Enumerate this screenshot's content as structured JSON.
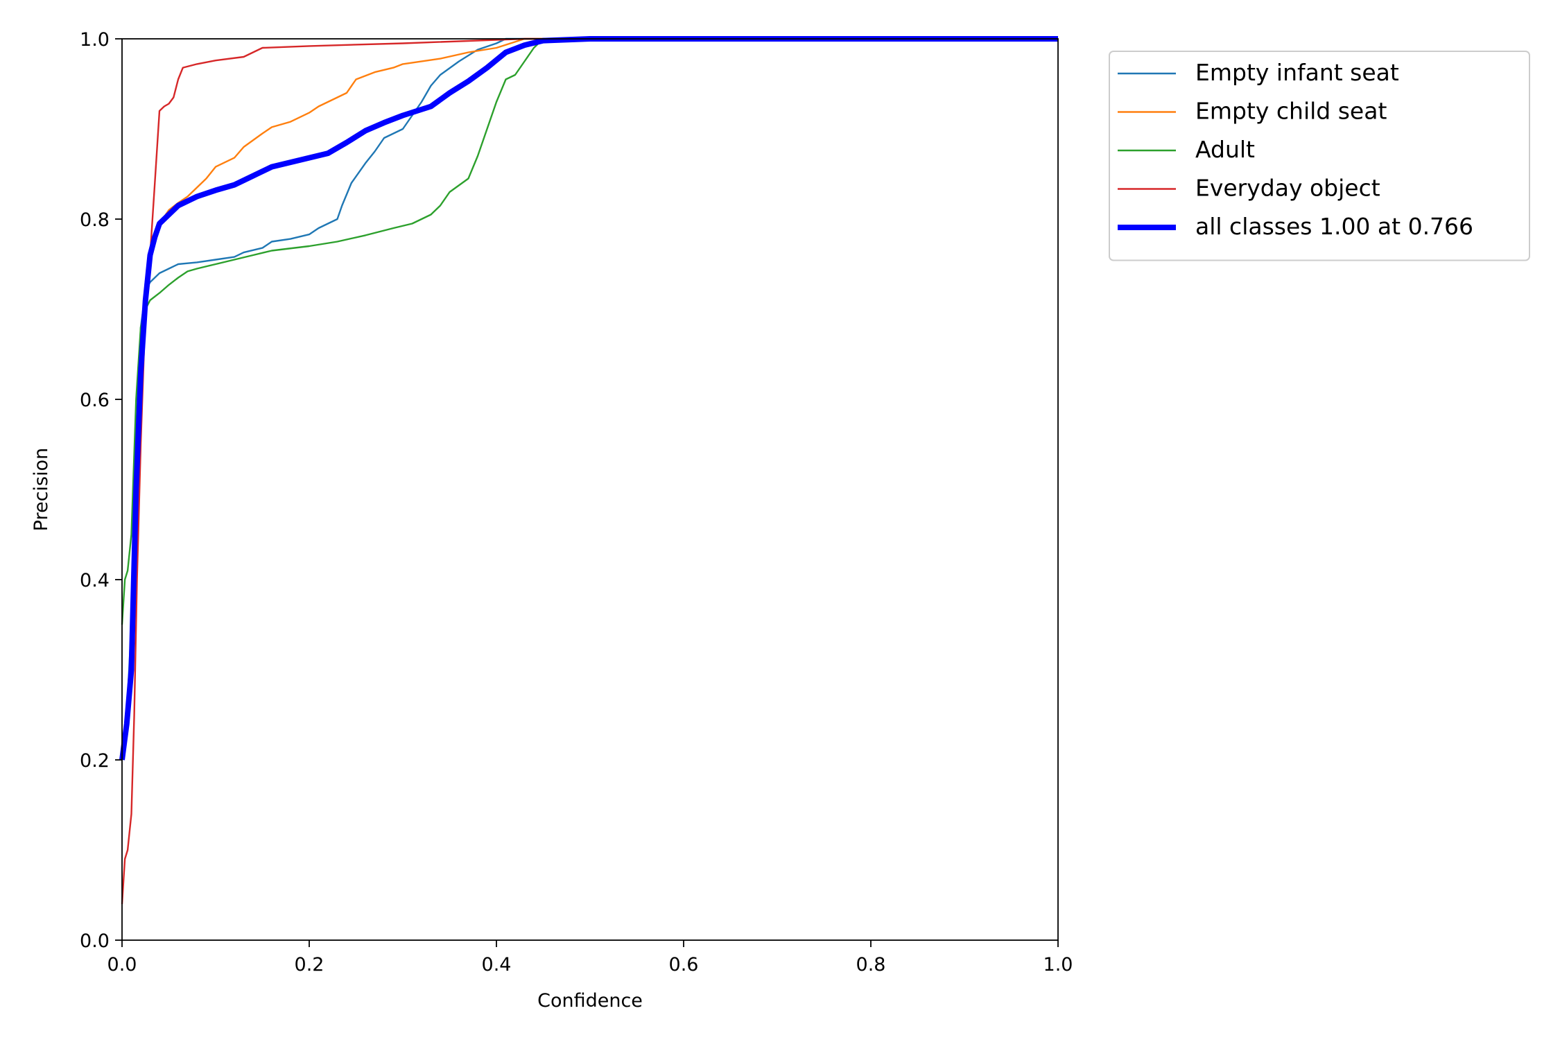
{
  "chart_data": {
    "type": "line",
    "title": "",
    "xlabel": "Confidence",
    "ylabel": "Precision",
    "xlim": [
      0,
      1
    ],
    "ylim": [
      0,
      1
    ],
    "x_ticks": [
      "0.0",
      "0.2",
      "0.4",
      "0.6",
      "0.8",
      "1.0"
    ],
    "y_ticks": [
      "0.0",
      "0.2",
      "0.4",
      "0.6",
      "0.8",
      "1.0"
    ],
    "grid": false,
    "legend_position": "outside-top-right",
    "series": [
      {
        "name": "Empty infant seat",
        "color": "#1f77b4",
        "points": [
          [
            0.0,
            0.2
          ],
          [
            0.005,
            0.25
          ],
          [
            0.01,
            0.35
          ],
          [
            0.015,
            0.55
          ],
          [
            0.02,
            0.68
          ],
          [
            0.025,
            0.72
          ],
          [
            0.03,
            0.73
          ],
          [
            0.04,
            0.74
          ],
          [
            0.05,
            0.745
          ],
          [
            0.06,
            0.75
          ],
          [
            0.08,
            0.752
          ],
          [
            0.1,
            0.755
          ],
          [
            0.12,
            0.758
          ],
          [
            0.13,
            0.763
          ],
          [
            0.15,
            0.768
          ],
          [
            0.16,
            0.775
          ],
          [
            0.18,
            0.778
          ],
          [
            0.2,
            0.783
          ],
          [
            0.21,
            0.79
          ],
          [
            0.23,
            0.8
          ],
          [
            0.235,
            0.815
          ],
          [
            0.245,
            0.84
          ],
          [
            0.26,
            0.862
          ],
          [
            0.27,
            0.875
          ],
          [
            0.28,
            0.89
          ],
          [
            0.3,
            0.9
          ],
          [
            0.31,
            0.915
          ],
          [
            0.32,
            0.93
          ],
          [
            0.33,
            0.948
          ],
          [
            0.34,
            0.96
          ],
          [
            0.36,
            0.975
          ],
          [
            0.38,
            0.988
          ],
          [
            0.4,
            0.995
          ],
          [
            0.41,
            1.0
          ],
          [
            1.0,
            1.0
          ]
        ]
      },
      {
        "name": "Empty child seat",
        "color": "#ff7f0e",
        "points": [
          [
            0.0,
            0.2
          ],
          [
            0.005,
            0.25
          ],
          [
            0.01,
            0.33
          ],
          [
            0.015,
            0.5
          ],
          [
            0.02,
            0.65
          ],
          [
            0.025,
            0.73
          ],
          [
            0.03,
            0.76
          ],
          [
            0.04,
            0.795
          ],
          [
            0.05,
            0.81
          ],
          [
            0.06,
            0.818
          ],
          [
            0.07,
            0.825
          ],
          [
            0.08,
            0.835
          ],
          [
            0.09,
            0.845
          ],
          [
            0.1,
            0.858
          ],
          [
            0.12,
            0.868
          ],
          [
            0.13,
            0.88
          ],
          [
            0.15,
            0.895
          ],
          [
            0.16,
            0.902
          ],
          [
            0.18,
            0.908
          ],
          [
            0.2,
            0.918
          ],
          [
            0.21,
            0.925
          ],
          [
            0.23,
            0.935
          ],
          [
            0.24,
            0.94
          ],
          [
            0.25,
            0.955
          ],
          [
            0.27,
            0.963
          ],
          [
            0.29,
            0.968
          ],
          [
            0.3,
            0.972
          ],
          [
            0.34,
            0.978
          ],
          [
            0.37,
            0.985
          ],
          [
            0.4,
            0.99
          ],
          [
            0.43,
            1.0
          ],
          [
            1.0,
            1.0
          ]
        ]
      },
      {
        "name": "Adult",
        "color": "#2ca02c",
        "points": [
          [
            0.0,
            0.35
          ],
          [
            0.003,
            0.4
          ],
          [
            0.006,
            0.41
          ],
          [
            0.01,
            0.45
          ],
          [
            0.015,
            0.6
          ],
          [
            0.02,
            0.68
          ],
          [
            0.025,
            0.7
          ],
          [
            0.03,
            0.71
          ],
          [
            0.04,
            0.718
          ],
          [
            0.05,
            0.727
          ],
          [
            0.06,
            0.735
          ],
          [
            0.07,
            0.742
          ],
          [
            0.08,
            0.745
          ],
          [
            0.1,
            0.75
          ],
          [
            0.12,
            0.755
          ],
          [
            0.14,
            0.76
          ],
          [
            0.16,
            0.765
          ],
          [
            0.2,
            0.77
          ],
          [
            0.23,
            0.775
          ],
          [
            0.26,
            0.782
          ],
          [
            0.29,
            0.79
          ],
          [
            0.31,
            0.795
          ],
          [
            0.33,
            0.805
          ],
          [
            0.34,
            0.815
          ],
          [
            0.35,
            0.83
          ],
          [
            0.37,
            0.845
          ],
          [
            0.38,
            0.87
          ],
          [
            0.39,
            0.9
          ],
          [
            0.4,
            0.93
          ],
          [
            0.41,
            0.955
          ],
          [
            0.42,
            0.96
          ],
          [
            0.43,
            0.975
          ],
          [
            0.44,
            0.99
          ],
          [
            0.45,
            1.0
          ],
          [
            1.0,
            1.0
          ]
        ]
      },
      {
        "name": "Everyday object",
        "color": "#d62728",
        "points": [
          [
            0.0,
            0.04
          ],
          [
            0.003,
            0.09
          ],
          [
            0.006,
            0.1
          ],
          [
            0.01,
            0.14
          ],
          [
            0.013,
            0.25
          ],
          [
            0.016,
            0.4
          ],
          [
            0.02,
            0.55
          ],
          [
            0.025,
            0.7
          ],
          [
            0.03,
            0.76
          ],
          [
            0.035,
            0.84
          ],
          [
            0.04,
            0.92
          ],
          [
            0.045,
            0.925
          ],
          [
            0.05,
            0.928
          ],
          [
            0.055,
            0.935
          ],
          [
            0.06,
            0.955
          ],
          [
            0.065,
            0.968
          ],
          [
            0.08,
            0.972
          ],
          [
            0.1,
            0.976
          ],
          [
            0.13,
            0.98
          ],
          [
            0.15,
            0.99
          ],
          [
            0.2,
            0.992
          ],
          [
            0.3,
            0.995
          ],
          [
            0.43,
            1.0
          ],
          [
            1.0,
            1.0
          ]
        ]
      },
      {
        "name": "all classes 1.00 at 0.766",
        "color": "#0000ff",
        "thick": true,
        "points": [
          [
            0.0,
            0.2
          ],
          [
            0.005,
            0.24
          ],
          [
            0.01,
            0.3
          ],
          [
            0.015,
            0.5
          ],
          [
            0.02,
            0.63
          ],
          [
            0.025,
            0.71
          ],
          [
            0.03,
            0.76
          ],
          [
            0.035,
            0.78
          ],
          [
            0.04,
            0.795
          ],
          [
            0.05,
            0.805
          ],
          [
            0.06,
            0.815
          ],
          [
            0.08,
            0.825
          ],
          [
            0.1,
            0.832
          ],
          [
            0.12,
            0.838
          ],
          [
            0.14,
            0.848
          ],
          [
            0.16,
            0.858
          ],
          [
            0.18,
            0.863
          ],
          [
            0.2,
            0.868
          ],
          [
            0.22,
            0.873
          ],
          [
            0.24,
            0.885
          ],
          [
            0.26,
            0.898
          ],
          [
            0.28,
            0.907
          ],
          [
            0.3,
            0.915
          ],
          [
            0.33,
            0.925
          ],
          [
            0.35,
            0.94
          ],
          [
            0.37,
            0.953
          ],
          [
            0.39,
            0.968
          ],
          [
            0.41,
            0.985
          ],
          [
            0.43,
            0.993
          ],
          [
            0.45,
            0.998
          ],
          [
            0.5,
            1.0
          ],
          [
            1.0,
            1.0
          ]
        ]
      }
    ]
  }
}
